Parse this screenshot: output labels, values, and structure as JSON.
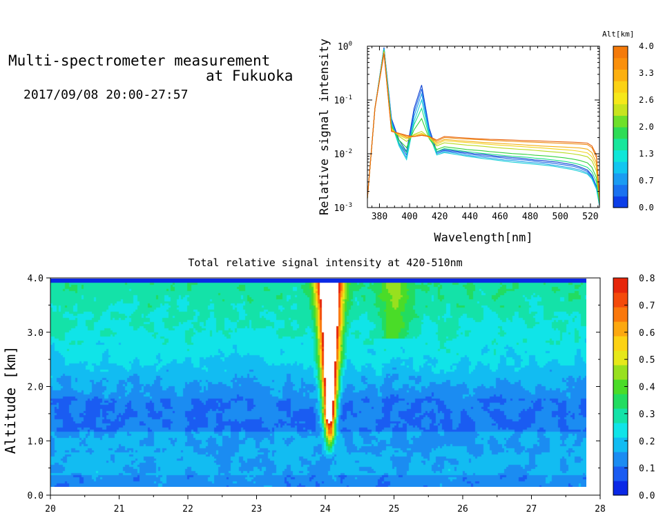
{
  "header": {
    "title_line1": "Multi-spectrometer measurement",
    "title_line2": "at Fukuoka",
    "datetime": "2017/09/08 20:00-27:57"
  },
  "chart_data": [
    {
      "type": "line",
      "xlabel": "Wavelength[nm]",
      "ylabel": "Relative signal intensity",
      "xlim": [
        372,
        526
      ],
      "ylim": [
        0.001,
        1
      ],
      "y_scale": "log",
      "x_ticks": [
        380,
        400,
        420,
        440,
        460,
        480,
        500,
        520
      ],
      "y_ticks": [
        {
          "mant": "10",
          "exp": "0",
          "v": 1
        },
        {
          "mant": "10",
          "exp": "-1",
          "v": 0.1
        },
        {
          "mant": "10",
          "exp": "-2",
          "v": 0.01
        },
        {
          "mant": "10",
          "exp": "-3",
          "v": 0.001
        }
      ],
      "x": [
        372,
        377,
        383,
        388,
        393,
        398,
        403,
        408,
        413,
        418,
        423,
        428,
        433,
        438,
        443,
        448,
        453,
        458,
        463,
        468,
        473,
        478,
        483,
        488,
        493,
        498,
        503,
        508,
        513,
        518,
        521,
        524,
        526
      ],
      "series": [
        {
          "alt": 0.2,
          "color": "#0a3fd0",
          "values": [
            0.0015,
            0.07,
            0.95,
            0.045,
            0.018,
            0.011,
            0.07,
            0.19,
            0.03,
            0.011,
            0.012,
            0.0115,
            0.011,
            0.0105,
            0.01,
            0.0098,
            0.0094,
            0.009,
            0.0088,
            0.0085,
            0.0083,
            0.008,
            0.0077,
            0.0075,
            0.0072,
            0.007,
            0.0066,
            0.0063,
            0.0057,
            0.005,
            0.004,
            0.0025,
            0.0011
          ]
        },
        {
          "alt": 0.5,
          "color": "#1e66e6",
          "values": [
            0.0015,
            0.07,
            0.93,
            0.043,
            0.016,
            0.0095,
            0.06,
            0.16,
            0.028,
            0.0105,
            0.0115,
            0.011,
            0.0105,
            0.01,
            0.0096,
            0.0092,
            0.0089,
            0.0086,
            0.0083,
            0.008,
            0.0078,
            0.0076,
            0.0073,
            0.007,
            0.0068,
            0.0065,
            0.0062,
            0.0059,
            0.0054,
            0.0047,
            0.0038,
            0.0024,
            0.0011
          ]
        },
        {
          "alt": 0.9,
          "color": "#1aa2e8",
          "values": [
            0.0015,
            0.07,
            0.9,
            0.04,
            0.015,
            0.0085,
            0.05,
            0.13,
            0.025,
            0.01,
            0.011,
            0.0105,
            0.01,
            0.0094,
            0.009,
            0.0087,
            0.0083,
            0.008,
            0.0077,
            0.0075,
            0.0072,
            0.007,
            0.0068,
            0.0066,
            0.0063,
            0.006,
            0.0057,
            0.0054,
            0.005,
            0.0044,
            0.0036,
            0.0023,
            0.0011
          ]
        },
        {
          "alt": 1.1,
          "color": "#14cfd8",
          "values": [
            0.0015,
            0.07,
            0.88,
            0.037,
            0.014,
            0.0078,
            0.04,
            0.1,
            0.023,
            0.0095,
            0.0105,
            0.01,
            0.0095,
            0.009,
            0.0086,
            0.0082,
            0.0079,
            0.0076,
            0.0073,
            0.007,
            0.0068,
            0.0066,
            0.0064,
            0.0062,
            0.006,
            0.0057,
            0.0054,
            0.0051,
            0.0047,
            0.0042,
            0.0034,
            0.0022,
            0.0011
          ]
        },
        {
          "alt": 1.5,
          "color": "#1de08a",
          "values": [
            0.0015,
            0.07,
            0.85,
            0.034,
            0.016,
            0.0105,
            0.035,
            0.07,
            0.021,
            0.011,
            0.0125,
            0.012,
            0.0115,
            0.011,
            0.0106,
            0.0102,
            0.0099,
            0.0096,
            0.0093,
            0.009,
            0.0088,
            0.0086,
            0.0083,
            0.0081,
            0.0078,
            0.0075,
            0.0072,
            0.0068,
            0.0063,
            0.0056,
            0.0046,
            0.003,
            0.0012
          ]
        },
        {
          "alt": 2.0,
          "color": "#33d23c",
          "values": [
            0.0015,
            0.07,
            0.83,
            0.032,
            0.018,
            0.013,
            0.028,
            0.045,
            0.019,
            0.012,
            0.0135,
            0.013,
            0.0125,
            0.012,
            0.0117,
            0.0114,
            0.011,
            0.0107,
            0.0104,
            0.0101,
            0.0099,
            0.0097,
            0.0094,
            0.0092,
            0.009,
            0.0087,
            0.0084,
            0.008,
            0.0075,
            0.0068,
            0.0056,
            0.0036,
            0.0012
          ]
        },
        {
          "alt": 2.6,
          "color": "#b8da1e",
          "values": [
            0.0015,
            0.07,
            0.8,
            0.03,
            0.021,
            0.017,
            0.023,
            0.026,
            0.02,
            0.014,
            0.016,
            0.0155,
            0.015,
            0.0145,
            0.0142,
            0.0138,
            0.0134,
            0.013,
            0.0127,
            0.0124,
            0.0121,
            0.0119,
            0.0116,
            0.0113,
            0.011,
            0.0107,
            0.0104,
            0.01,
            0.0095,
            0.0088,
            0.0074,
            0.0048,
            0.0013
          ]
        },
        {
          "alt": 3.0,
          "color": "#f2d21a",
          "values": [
            0.0015,
            0.07,
            0.78,
            0.028,
            0.022,
            0.019,
            0.022,
            0.024,
            0.02,
            0.015,
            0.0175,
            0.017,
            0.0166,
            0.0162,
            0.0158,
            0.0154,
            0.015,
            0.0146,
            0.0143,
            0.014,
            0.0137,
            0.0134,
            0.0131,
            0.0128,
            0.0125,
            0.0122,
            0.0119,
            0.0116,
            0.0111,
            0.0104,
            0.0088,
            0.0058,
            0.0014
          ]
        },
        {
          "alt": 3.3,
          "color": "#f4b014",
          "values": [
            0.0015,
            0.07,
            0.76,
            0.027,
            0.023,
            0.02,
            0.021,
            0.023,
            0.021,
            0.016,
            0.0185,
            0.018,
            0.0175,
            0.0171,
            0.0167,
            0.0163,
            0.016,
            0.0157,
            0.0154,
            0.0151,
            0.0148,
            0.0145,
            0.0142,
            0.0139,
            0.0137,
            0.0135,
            0.0133,
            0.0131,
            0.0128,
            0.0122,
            0.0105,
            0.0068,
            0.0015
          ]
        },
        {
          "alt": 3.7,
          "color": "#ee8a10",
          "values": [
            0.0015,
            0.07,
            0.74,
            0.026,
            0.024,
            0.021,
            0.021,
            0.022,
            0.021,
            0.017,
            0.02,
            0.0196,
            0.0192,
            0.0188,
            0.0185,
            0.0182,
            0.0179,
            0.0176,
            0.0173,
            0.017,
            0.0168,
            0.0166,
            0.0164,
            0.0162,
            0.016,
            0.0158,
            0.0156,
            0.0154,
            0.0152,
            0.0148,
            0.013,
            0.0085,
            0.0016
          ]
        },
        {
          "alt": 3.9,
          "color": "#e8620c",
          "values": [
            0.0015,
            0.07,
            0.72,
            0.026,
            0.024,
            0.022,
            0.021,
            0.022,
            0.021,
            0.018,
            0.021,
            0.0205,
            0.02,
            0.0196,
            0.0192,
            0.0189,
            0.0186,
            0.0184,
            0.0182,
            0.018,
            0.0178,
            0.0176,
            0.0174,
            0.0172,
            0.017,
            0.0168,
            0.0166,
            0.0164,
            0.0162,
            0.0158,
            0.014,
            0.0095,
            0.0016
          ]
        }
      ],
      "colorbar": {
        "label": "Alt[km]",
        "tick_labels": [
          "4.0",
          "3.3",
          "2.6",
          "2.0",
          "1.3",
          "0.7",
          "0.0"
        ],
        "colors": [
          "#0c3ee8",
          "#1a72f0",
          "#1b9cf2",
          "#12c6f0",
          "#10e6d8",
          "#18e69c",
          "#2edc56",
          "#6ee02a",
          "#c8e41e",
          "#f6e81a",
          "#fbd214",
          "#fcb010",
          "#fa900c",
          "#f47a0a"
        ]
      }
    },
    {
      "type": "heatmap",
      "title": "Total relative signal intensity at 420-510nm",
      "ylabel": "Altitude [km]",
      "xlim": [
        20,
        28
      ],
      "ylim": [
        0,
        4
      ],
      "x_ticks": [
        "20",
        "21",
        "22",
        "23",
        "24",
        "25",
        "26",
        "27",
        "28"
      ],
      "y_ticks": [
        "0.0",
        "1.0",
        "2.0",
        "3.0",
        "4.0"
      ],
      "data_x_range": [
        20,
        27.8
      ],
      "data_y_range": [
        0.15,
        4.0
      ],
      "plume_center_hour": 24.05,
      "colorbar": {
        "tick_labels": [
          "0.8",
          "0.7",
          "0.6",
          "0.5",
          "0.4",
          "0.3",
          "0.2",
          "0.1",
          "0.0"
        ],
        "range": [
          0,
          0.8
        ],
        "colors": [
          "#0a28e6",
          "#1a5cf2",
          "#1b8cf2",
          "#12bcf2",
          "#10e4e8",
          "#14e2a8",
          "#22dc60",
          "#4adc28",
          "#98e01e",
          "#e6e81a",
          "#fcd214",
          "#fca810",
          "#fa780c",
          "#f44a0a",
          "#e6260a"
        ]
      }
    }
  ]
}
